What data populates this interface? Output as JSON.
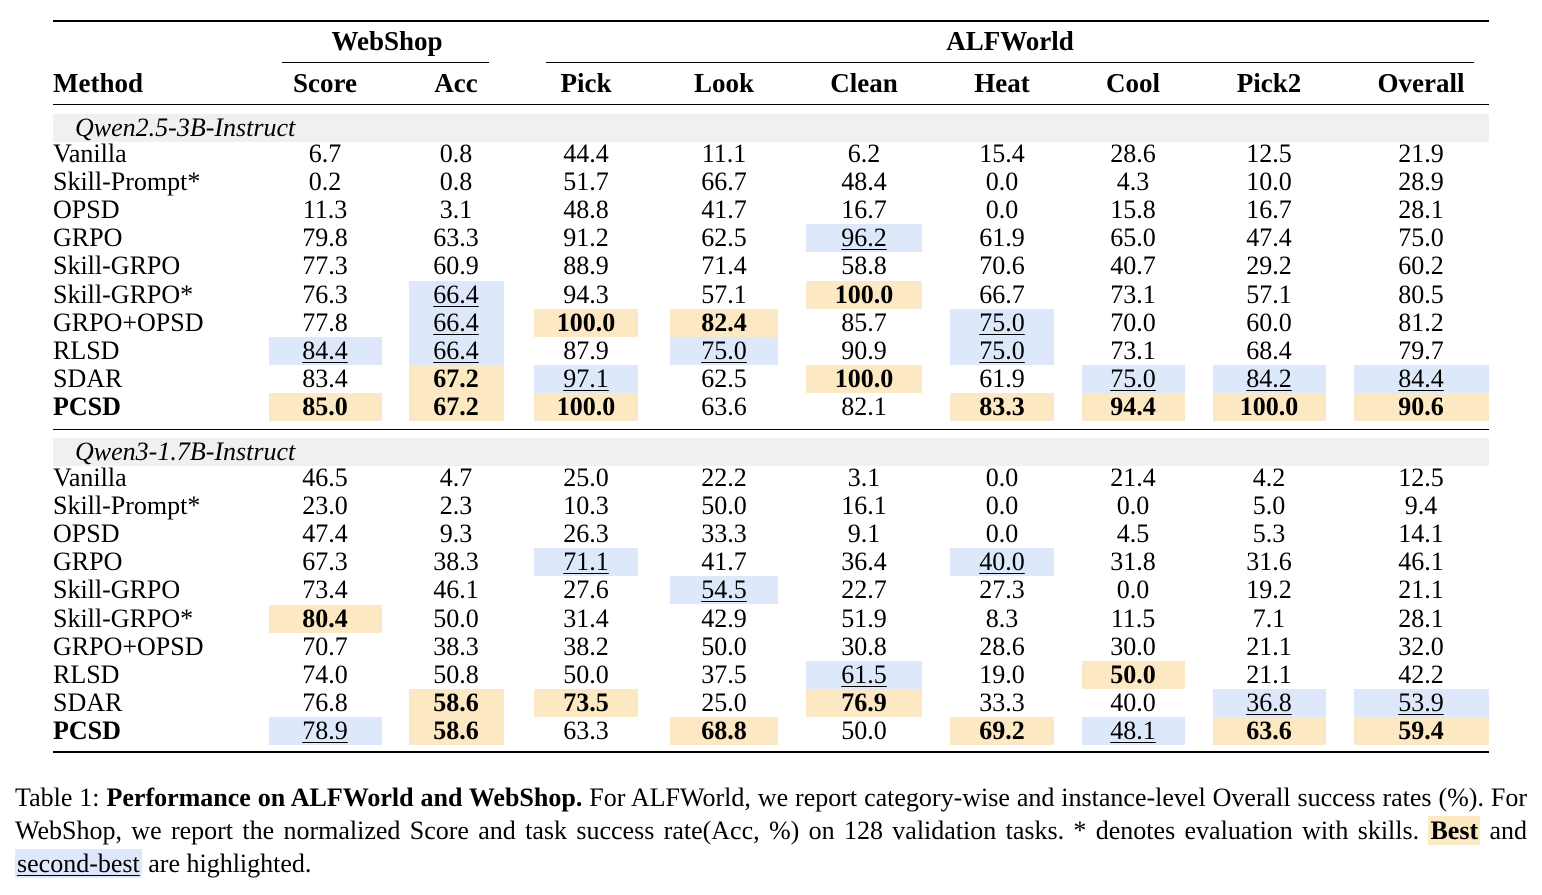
{
  "table": {
    "group_headers": {
      "webshop": "WebShop",
      "alfworld": "ALFWorld"
    },
    "columns": [
      "Method",
      "Score",
      "Acc",
      "Pick",
      "Look",
      "Clean",
      "Heat",
      "Cool",
      "Pick2",
      "Overall"
    ],
    "groups": [
      {
        "label": "Qwen2.5-3B-Instruct",
        "rows": [
          {
            "method": "Vanilla",
            "bold": false,
            "cells": [
              {
                "v": "6.7",
                "s": ""
              },
              {
                "v": "0.8",
                "s": ""
              },
              {
                "v": "44.4",
                "s": ""
              },
              {
                "v": "11.1",
                "s": ""
              },
              {
                "v": "6.2",
                "s": ""
              },
              {
                "v": "15.4",
                "s": ""
              },
              {
                "v": "28.6",
                "s": ""
              },
              {
                "v": "12.5",
                "s": ""
              },
              {
                "v": "21.9",
                "s": ""
              }
            ]
          },
          {
            "method": "Skill-Prompt*",
            "bold": false,
            "cells": [
              {
                "v": "0.2",
                "s": ""
              },
              {
                "v": "0.8",
                "s": ""
              },
              {
                "v": "51.7",
                "s": ""
              },
              {
                "v": "66.7",
                "s": ""
              },
              {
                "v": "48.4",
                "s": ""
              },
              {
                "v": "0.0",
                "s": ""
              },
              {
                "v": "4.3",
                "s": ""
              },
              {
                "v": "10.0",
                "s": ""
              },
              {
                "v": "28.9",
                "s": ""
              }
            ]
          },
          {
            "method": "OPSD",
            "bold": false,
            "cells": [
              {
                "v": "11.3",
                "s": ""
              },
              {
                "v": "3.1",
                "s": ""
              },
              {
                "v": "48.8",
                "s": ""
              },
              {
                "v": "41.7",
                "s": ""
              },
              {
                "v": "16.7",
                "s": ""
              },
              {
                "v": "0.0",
                "s": ""
              },
              {
                "v": "15.8",
                "s": ""
              },
              {
                "v": "16.7",
                "s": ""
              },
              {
                "v": "28.1",
                "s": ""
              }
            ]
          },
          {
            "method": "GRPO",
            "bold": false,
            "cells": [
              {
                "v": "79.8",
                "s": ""
              },
              {
                "v": "63.3",
                "s": ""
              },
              {
                "v": "91.2",
                "s": ""
              },
              {
                "v": "62.5",
                "s": ""
              },
              {
                "v": "96.2",
                "s": "second"
              },
              {
                "v": "61.9",
                "s": ""
              },
              {
                "v": "65.0",
                "s": ""
              },
              {
                "v": "47.4",
                "s": ""
              },
              {
                "v": "75.0",
                "s": ""
              }
            ]
          },
          {
            "method": "Skill-GRPO",
            "bold": false,
            "cells": [
              {
                "v": "77.3",
                "s": ""
              },
              {
                "v": "60.9",
                "s": ""
              },
              {
                "v": "88.9",
                "s": ""
              },
              {
                "v": "71.4",
                "s": ""
              },
              {
                "v": "58.8",
                "s": ""
              },
              {
                "v": "70.6",
                "s": ""
              },
              {
                "v": "40.7",
                "s": ""
              },
              {
                "v": "29.2",
                "s": ""
              },
              {
                "v": "60.2",
                "s": ""
              }
            ]
          },
          {
            "method": "Skill-GRPO*",
            "bold": false,
            "cells": [
              {
                "v": "76.3",
                "s": ""
              },
              {
                "v": "66.4",
                "s": "second"
              },
              {
                "v": "94.3",
                "s": ""
              },
              {
                "v": "57.1",
                "s": ""
              },
              {
                "v": "100.0",
                "s": "best"
              },
              {
                "v": "66.7",
                "s": ""
              },
              {
                "v": "73.1",
                "s": ""
              },
              {
                "v": "57.1",
                "s": ""
              },
              {
                "v": "80.5",
                "s": ""
              }
            ]
          },
          {
            "method": "GRPO+OPSD",
            "bold": false,
            "cells": [
              {
                "v": "77.8",
                "s": ""
              },
              {
                "v": "66.4",
                "s": "second"
              },
              {
                "v": "100.0",
                "s": "best"
              },
              {
                "v": "82.4",
                "s": "best"
              },
              {
                "v": "85.7",
                "s": ""
              },
              {
                "v": "75.0",
                "s": "second"
              },
              {
                "v": "70.0",
                "s": ""
              },
              {
                "v": "60.0",
                "s": ""
              },
              {
                "v": "81.2",
                "s": ""
              }
            ]
          },
          {
            "method": "RLSD",
            "bold": false,
            "cells": [
              {
                "v": "84.4",
                "s": "second"
              },
              {
                "v": "66.4",
                "s": "second"
              },
              {
                "v": "87.9",
                "s": ""
              },
              {
                "v": "75.0",
                "s": "second"
              },
              {
                "v": "90.9",
                "s": ""
              },
              {
                "v": "75.0",
                "s": "second"
              },
              {
                "v": "73.1",
                "s": ""
              },
              {
                "v": "68.4",
                "s": ""
              },
              {
                "v": "79.7",
                "s": ""
              }
            ]
          },
          {
            "method": "SDAR",
            "bold": false,
            "cells": [
              {
                "v": "83.4",
                "s": ""
              },
              {
                "v": "67.2",
                "s": "best"
              },
              {
                "v": "97.1",
                "s": "second"
              },
              {
                "v": "62.5",
                "s": ""
              },
              {
                "v": "100.0",
                "s": "best"
              },
              {
                "v": "61.9",
                "s": ""
              },
              {
                "v": "75.0",
                "s": "second"
              },
              {
                "v": "84.2",
                "s": "second"
              },
              {
                "v": "84.4",
                "s": "second"
              }
            ]
          },
          {
            "method": "PCSD",
            "bold": true,
            "cells": [
              {
                "v": "85.0",
                "s": "best"
              },
              {
                "v": "67.2",
                "s": "best"
              },
              {
                "v": "100.0",
                "s": "best"
              },
              {
                "v": "63.6",
                "s": ""
              },
              {
                "v": "82.1",
                "s": ""
              },
              {
                "v": "83.3",
                "s": "best"
              },
              {
                "v": "94.4",
                "s": "best"
              },
              {
                "v": "100.0",
                "s": "best"
              },
              {
                "v": "90.6",
                "s": "best"
              }
            ]
          }
        ]
      },
      {
        "label": "Qwen3-1.7B-Instruct",
        "rows": [
          {
            "method": "Vanilla",
            "bold": false,
            "cells": [
              {
                "v": "46.5",
                "s": ""
              },
              {
                "v": "4.7",
                "s": ""
              },
              {
                "v": "25.0",
                "s": ""
              },
              {
                "v": "22.2",
                "s": ""
              },
              {
                "v": "3.1",
                "s": ""
              },
              {
                "v": "0.0",
                "s": ""
              },
              {
                "v": "21.4",
                "s": ""
              },
              {
                "v": "4.2",
                "s": ""
              },
              {
                "v": "12.5",
                "s": ""
              }
            ]
          },
          {
            "method": "Skill-Prompt*",
            "bold": false,
            "cells": [
              {
                "v": "23.0",
                "s": ""
              },
              {
                "v": "2.3",
                "s": ""
              },
              {
                "v": "10.3",
                "s": ""
              },
              {
                "v": "50.0",
                "s": ""
              },
              {
                "v": "16.1",
                "s": ""
              },
              {
                "v": "0.0",
                "s": ""
              },
              {
                "v": "0.0",
                "s": ""
              },
              {
                "v": "5.0",
                "s": ""
              },
              {
                "v": "9.4",
                "s": ""
              }
            ]
          },
          {
            "method": "OPSD",
            "bold": false,
            "cells": [
              {
                "v": "47.4",
                "s": ""
              },
              {
                "v": "9.3",
                "s": ""
              },
              {
                "v": "26.3",
                "s": ""
              },
              {
                "v": "33.3",
                "s": ""
              },
              {
                "v": "9.1",
                "s": ""
              },
              {
                "v": "0.0",
                "s": ""
              },
              {
                "v": "4.5",
                "s": ""
              },
              {
                "v": "5.3",
                "s": ""
              },
              {
                "v": "14.1",
                "s": ""
              }
            ]
          },
          {
            "method": "GRPO",
            "bold": false,
            "cells": [
              {
                "v": "67.3",
                "s": ""
              },
              {
                "v": "38.3",
                "s": ""
              },
              {
                "v": "71.1",
                "s": "second"
              },
              {
                "v": "41.7",
                "s": ""
              },
              {
                "v": "36.4",
                "s": ""
              },
              {
                "v": "40.0",
                "s": "second"
              },
              {
                "v": "31.8",
                "s": ""
              },
              {
                "v": "31.6",
                "s": ""
              },
              {
                "v": "46.1",
                "s": ""
              }
            ]
          },
          {
            "method": "Skill-GRPO",
            "bold": false,
            "cells": [
              {
                "v": "73.4",
                "s": ""
              },
              {
                "v": "46.1",
                "s": ""
              },
              {
                "v": "27.6",
                "s": ""
              },
              {
                "v": "54.5",
                "s": "second"
              },
              {
                "v": "22.7",
                "s": ""
              },
              {
                "v": "27.3",
                "s": ""
              },
              {
                "v": "0.0",
                "s": ""
              },
              {
                "v": "19.2",
                "s": ""
              },
              {
                "v": "21.1",
                "s": ""
              }
            ]
          },
          {
            "method": "Skill-GRPO*",
            "bold": false,
            "cells": [
              {
                "v": "80.4",
                "s": "best"
              },
              {
                "v": "50.0",
                "s": ""
              },
              {
                "v": "31.4",
                "s": ""
              },
              {
                "v": "42.9",
                "s": ""
              },
              {
                "v": "51.9",
                "s": ""
              },
              {
                "v": "8.3",
                "s": ""
              },
              {
                "v": "11.5",
                "s": ""
              },
              {
                "v": "7.1",
                "s": ""
              },
              {
                "v": "28.1",
                "s": ""
              }
            ]
          },
          {
            "method": "GRPO+OPSD",
            "bold": false,
            "cells": [
              {
                "v": "70.7",
                "s": ""
              },
              {
                "v": "38.3",
                "s": ""
              },
              {
                "v": "38.2",
                "s": ""
              },
              {
                "v": "50.0",
                "s": ""
              },
              {
                "v": "30.8",
                "s": ""
              },
              {
                "v": "28.6",
                "s": ""
              },
              {
                "v": "30.0",
                "s": ""
              },
              {
                "v": "21.1",
                "s": ""
              },
              {
                "v": "32.0",
                "s": ""
              }
            ]
          },
          {
            "method": "RLSD",
            "bold": false,
            "cells": [
              {
                "v": "74.0",
                "s": ""
              },
              {
                "v": "50.8",
                "s": ""
              },
              {
                "v": "50.0",
                "s": ""
              },
              {
                "v": "37.5",
                "s": ""
              },
              {
                "v": "61.5",
                "s": "second"
              },
              {
                "v": "19.0",
                "s": ""
              },
              {
                "v": "50.0",
                "s": "best"
              },
              {
                "v": "21.1",
                "s": ""
              },
              {
                "v": "42.2",
                "s": ""
              }
            ]
          },
          {
            "method": "SDAR",
            "bold": false,
            "cells": [
              {
                "v": "76.8",
                "s": ""
              },
              {
                "v": "58.6",
                "s": "best"
              },
              {
                "v": "73.5",
                "s": "best"
              },
              {
                "v": "25.0",
                "s": ""
              },
              {
                "v": "76.9",
                "s": "best"
              },
              {
                "v": "33.3",
                "s": ""
              },
              {
                "v": "40.0",
                "s": ""
              },
              {
                "v": "36.8",
                "s": "second"
              },
              {
                "v": "53.9",
                "s": "second"
              }
            ]
          },
          {
            "method": "PCSD",
            "bold": true,
            "cells": [
              {
                "v": "78.9",
                "s": "second"
              },
              {
                "v": "58.6",
                "s": "best"
              },
              {
                "v": "63.3",
                "s": ""
              },
              {
                "v": "68.8",
                "s": "best"
              },
              {
                "v": "50.0",
                "s": ""
              },
              {
                "v": "69.2",
                "s": "best"
              },
              {
                "v": "48.1",
                "s": "second"
              },
              {
                "v": "63.6",
                "s": "best"
              },
              {
                "v": "59.4",
                "s": "best"
              }
            ]
          }
        ]
      }
    ]
  },
  "caption": {
    "prefix": "Table 1: ",
    "lead": "Performance on ALFWorld and WebShop.",
    "body": " For ALFWorld, we report category-wise and instance-level Overall success rates (%). For WebShop, we report the normalized Score and task success rate(Acc, %) on 128 validation tasks. * denotes evaluation with skills. ",
    "best_label": "Best",
    "and": " and ",
    "second_label": "second-best",
    "suffix": " are highlighted."
  },
  "colors": {
    "best": "#fce8c3",
    "second": "#dde8fa",
    "group_band": "#f0f0f0"
  }
}
